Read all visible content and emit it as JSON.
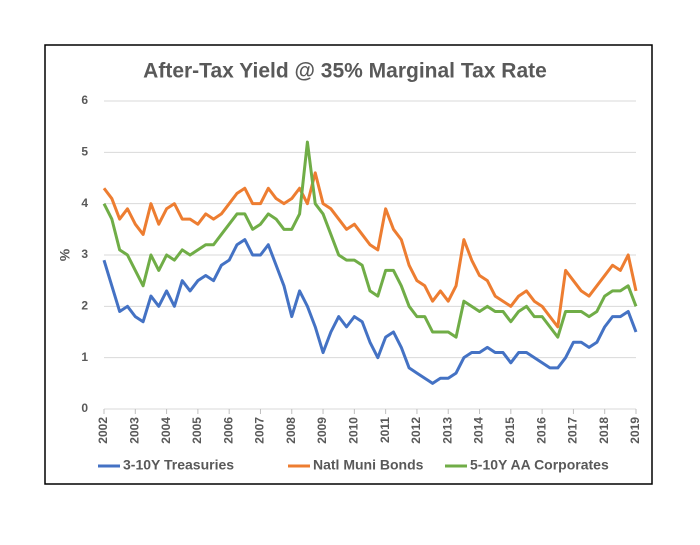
{
  "chart_data": {
    "type": "line",
    "title": "After-Tax Yield @ 35% Marginal Tax Rate",
    "y_label": "%",
    "x": [
      2002,
      2002.25,
      2002.5,
      2002.75,
      2003,
      2003.25,
      2003.5,
      2003.75,
      2004,
      2004.25,
      2004.5,
      2004.75,
      2005,
      2005.25,
      2005.5,
      2005.75,
      2006,
      2006.25,
      2006.5,
      2006.75,
      2007,
      2007.25,
      2007.5,
      2007.75,
      2008,
      2008.25,
      2008.5,
      2008.75,
      2009,
      2009.25,
      2009.5,
      2009.75,
      2010,
      2010.25,
      2010.5,
      2010.75,
      2011,
      2011.25,
      2011.5,
      2011.75,
      2012,
      2012.25,
      2012.5,
      2012.75,
      2013,
      2013.25,
      2013.5,
      2013.75,
      2014,
      2014.25,
      2014.5,
      2014.75,
      2015,
      2015.25,
      2015.5,
      2015.75,
      2016,
      2016.25,
      2016.5,
      2016.75,
      2017,
      2017.25,
      2017.5,
      2017.75,
      2018,
      2018.25,
      2018.5,
      2018.75,
      2019
    ],
    "series": [
      {
        "name": "3-10Y Treasuries",
        "color": "#4472c4",
        "values": [
          2.9,
          2.4,
          1.9,
          2.0,
          1.8,
          1.7,
          2.2,
          2.0,
          2.3,
          2.0,
          2.5,
          2.3,
          2.5,
          2.6,
          2.5,
          2.8,
          2.9,
          3.2,
          3.3,
          3.0,
          3.0,
          3.2,
          2.8,
          2.4,
          1.8,
          2.3,
          2.0,
          1.6,
          1.1,
          1.5,
          1.8,
          1.6,
          1.8,
          1.7,
          1.3,
          1.0,
          1.4,
          1.5,
          1.2,
          0.8,
          0.7,
          0.6,
          0.5,
          0.6,
          0.6,
          0.7,
          1.0,
          1.1,
          1.1,
          1.2,
          1.1,
          1.1,
          0.9,
          1.1,
          1.1,
          1.0,
          0.9,
          0.8,
          0.8,
          1.0,
          1.3,
          1.3,
          1.2,
          1.3,
          1.6,
          1.8,
          1.8,
          1.9,
          1.5
        ]
      },
      {
        "name": "Natl Muni Bonds",
        "color": "#ed7d31",
        "values": [
          4.3,
          4.1,
          3.7,
          3.9,
          3.6,
          3.4,
          4.0,
          3.6,
          3.9,
          4.0,
          3.7,
          3.7,
          3.6,
          3.8,
          3.7,
          3.8,
          4.0,
          4.2,
          4.3,
          4.0,
          4.0,
          4.3,
          4.1,
          4.0,
          4.1,
          4.3,
          4.0,
          4.6,
          4.0,
          3.9,
          3.7,
          3.5,
          3.6,
          3.4,
          3.2,
          3.1,
          3.9,
          3.5,
          3.3,
          2.8,
          2.5,
          2.4,
          2.1,
          2.3,
          2.1,
          2.4,
          3.3,
          2.9,
          2.6,
          2.5,
          2.2,
          2.1,
          2.0,
          2.2,
          2.3,
          2.1,
          2.0,
          1.8,
          1.6,
          2.7,
          2.5,
          2.3,
          2.2,
          2.4,
          2.6,
          2.8,
          2.7,
          3.0,
          2.3
        ]
      },
      {
        "name": "5-10Y AA Corporates",
        "color": "#70ad47",
        "values": [
          4.0,
          3.7,
          3.1,
          3.0,
          2.7,
          2.4,
          3.0,
          2.7,
          3.0,
          2.9,
          3.1,
          3.0,
          3.1,
          3.2,
          3.2,
          3.4,
          3.6,
          3.8,
          3.8,
          3.5,
          3.6,
          3.8,
          3.7,
          3.5,
          3.5,
          3.8,
          5.2,
          4.0,
          3.8,
          3.4,
          3.0,
          2.9,
          2.9,
          2.8,
          2.3,
          2.2,
          2.7,
          2.7,
          2.4,
          2.0,
          1.8,
          1.8,
          1.5,
          1.5,
          1.5,
          1.4,
          2.1,
          2.0,
          1.9,
          2.0,
          1.9,
          1.9,
          1.7,
          1.9,
          2.0,
          1.8,
          1.8,
          1.6,
          1.4,
          1.9,
          1.9,
          1.9,
          1.8,
          1.9,
          2.2,
          2.3,
          2.3,
          2.4,
          2.0
        ]
      }
    ],
    "xlim": [
      2002,
      2019
    ],
    "xticks": [
      2002,
      2003,
      2004,
      2005,
      2006,
      2007,
      2008,
      2009,
      2010,
      2011,
      2012,
      2013,
      2014,
      2015,
      2016,
      2017,
      2018,
      2019
    ],
    "ylim": [
      0,
      6
    ],
    "yticks": [
      0,
      1,
      2,
      3,
      4,
      5,
      6
    ],
    "grid": true,
    "legend": "bottom"
  }
}
